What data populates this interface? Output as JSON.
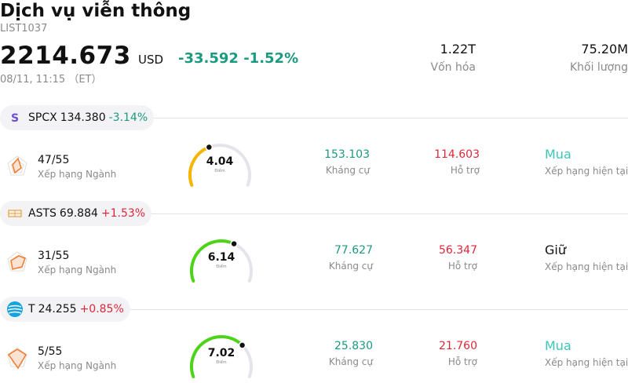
{
  "header": {
    "title": "Dịch vụ viễn thông",
    "code": "LIST1037",
    "price": "2214.673",
    "currency": "USD",
    "change": "-33.592 -1.52%",
    "datetime": "08/11, 11:15 （ET）"
  },
  "stats": [
    {
      "value": "1.22T",
      "label": "Vốn hóa"
    },
    {
      "value": "75.20M",
      "label": "Khối lượng"
    }
  ],
  "colors": {
    "positive": "#e0263a",
    "negative": "#1a9a7f",
    "buy": "#3cc5b8"
  },
  "stocks": [
    {
      "logo": "spcx-s-logo",
      "symbol": "SPCX",
      "price": "134.380",
      "change": "-3.14%",
      "rank": "47/55",
      "rank_label": "Xếp hạng Ngành",
      "score": "4.04",
      "score_unit": "Điểm",
      "score_fraction": 0.404,
      "resistance": "153.103",
      "resistance_label": "Kháng cự",
      "support": "114.603",
      "support_label": "Hỗ trợ",
      "rating": "Mua",
      "rating_label": "Xếp hạng hiện tại"
    },
    {
      "logo": "asts-logo",
      "symbol": "ASTS",
      "price": "69.884",
      "change": "+1.53%",
      "rank": "31/55",
      "rank_label": "Xếp hạng Ngành",
      "score": "6.14",
      "score_unit": "Điểm",
      "score_fraction": 0.614,
      "resistance": "77.627",
      "resistance_label": "Kháng cự",
      "support": "56.347",
      "support_label": "Hỗ trợ",
      "rating": "Giữ",
      "rating_label": "Xếp hạng hiện tại"
    },
    {
      "logo": "att-globe-logo",
      "symbol": "T",
      "price": "24.255",
      "change": "+0.85%",
      "rank": "5/55",
      "rank_label": "Xếp hạng Ngành",
      "score": "7.02",
      "score_unit": "Điểm",
      "score_fraction": 0.702,
      "resistance": "25.830",
      "resistance_label": "Kháng cự",
      "support": "21.760",
      "support_label": "Hỗ trợ",
      "rating": "Mua",
      "rating_label": "Xếp hạng hiện tại"
    }
  ]
}
